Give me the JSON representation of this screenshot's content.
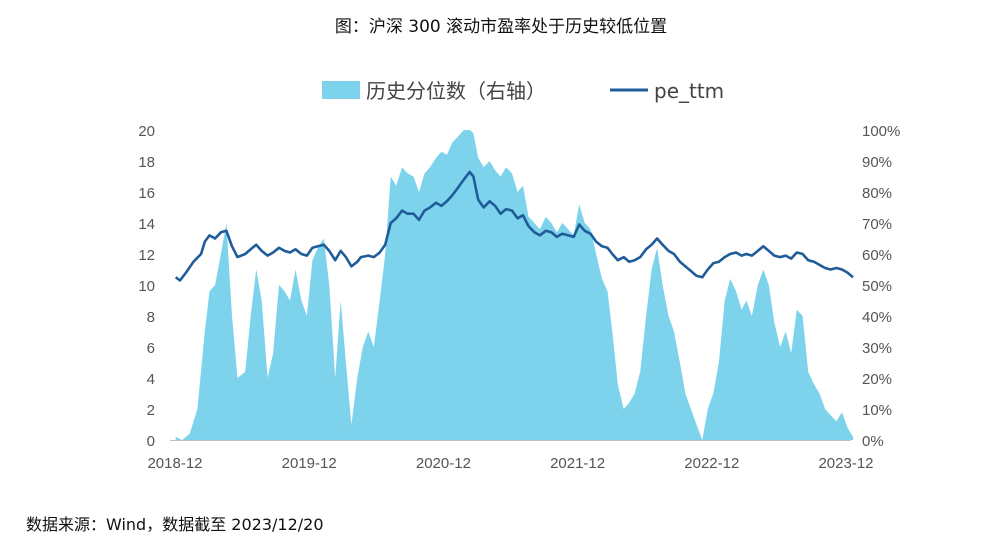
{
  "title": "图：沪深 300 滚动市盈率处于历史较低位置",
  "source": "数据来源：Wind，数据截至 2023/12/20",
  "colors": {
    "area": "#7DD3EC",
    "line": "#1F5C99",
    "axis": "#bfbfbf"
  },
  "chart_data": {
    "type": "line+area",
    "x_ticks": [
      "2018-12",
      "2019-12",
      "2020-12",
      "2021-12",
      "2022-12",
      "2023-12"
    ],
    "y_left": {
      "range": [
        0,
        20
      ],
      "ticks": [
        "0",
        "2",
        "4",
        "6",
        "8",
        "10",
        "12",
        "14",
        "16",
        "18",
        "20"
      ]
    },
    "y_right": {
      "range": [
        0,
        100
      ],
      "ticks": [
        "0%",
        "10%",
        "20%",
        "30%",
        "40%",
        "50%",
        "60%",
        "70%",
        "80%",
        "90%",
        "100%"
      ]
    },
    "legend": {
      "placement": "top-center",
      "area_label": "历史分位数（右轴）",
      "line_label": "pe_ttm"
    },
    "series": [
      {
        "name": "历史分位数（右轴）",
        "axis": "right",
        "kind": "area",
        "points": [
          [
            "2018-12-03",
            1
          ],
          [
            "2018-12-20",
            0
          ],
          [
            "2019-01-10",
            2
          ],
          [
            "2019-01-31",
            10
          ],
          [
            "2019-02-20",
            35
          ],
          [
            "2019-03-05",
            48
          ],
          [
            "2019-03-20",
            50
          ],
          [
            "2019-04-05",
            60
          ],
          [
            "2019-04-20",
            70
          ],
          [
            "2019-05-05",
            40
          ],
          [
            "2019-05-20",
            20
          ],
          [
            "2019-06-10",
            22
          ],
          [
            "2019-06-25",
            40
          ],
          [
            "2019-07-10",
            55
          ],
          [
            "2019-07-25",
            45
          ],
          [
            "2019-08-10",
            20
          ],
          [
            "2019-08-25",
            28
          ],
          [
            "2019-09-10",
            50
          ],
          [
            "2019-09-25",
            48
          ],
          [
            "2019-10-10",
            45
          ],
          [
            "2019-10-25",
            55
          ],
          [
            "2019-11-10",
            45
          ],
          [
            "2019-11-25",
            40
          ],
          [
            "2019-12-10",
            58
          ],
          [
            "2019-12-25",
            62
          ],
          [
            "2020-01-10",
            65
          ],
          [
            "2020-01-25",
            50
          ],
          [
            "2020-02-10",
            20
          ],
          [
            "2020-02-25",
            45
          ],
          [
            "2020-03-10",
            25
          ],
          [
            "2020-03-25",
            5
          ],
          [
            "2020-04-10",
            20
          ],
          [
            "2020-04-25",
            30
          ],
          [
            "2020-05-10",
            35
          ],
          [
            "2020-05-25",
            30
          ],
          [
            "2020-06-10",
            45
          ],
          [
            "2020-06-25",
            60
          ],
          [
            "2020-07-10",
            85
          ],
          [
            "2020-07-25",
            82
          ],
          [
            "2020-08-10",
            88
          ],
          [
            "2020-08-25",
            86
          ],
          [
            "2020-09-10",
            85
          ],
          [
            "2020-09-25",
            80
          ],
          [
            "2020-10-10",
            86
          ],
          [
            "2020-10-25",
            88
          ],
          [
            "2020-11-10",
            91
          ],
          [
            "2020-11-25",
            93
          ],
          [
            "2020-12-10",
            92
          ],
          [
            "2020-12-25",
            96
          ],
          [
            "2021-01-10",
            98
          ],
          [
            "2021-01-25",
            100
          ],
          [
            "2021-02-10",
            100
          ],
          [
            "2021-02-20",
            99
          ],
          [
            "2021-03-05",
            91
          ],
          [
            "2021-03-20",
            88
          ],
          [
            "2021-04-05",
            90
          ],
          [
            "2021-04-20",
            87
          ],
          [
            "2021-05-05",
            85
          ],
          [
            "2021-05-20",
            88
          ],
          [
            "2021-06-05",
            86
          ],
          [
            "2021-06-20",
            80
          ],
          [
            "2021-07-05",
            82
          ],
          [
            "2021-07-20",
            72
          ],
          [
            "2021-08-05",
            70
          ],
          [
            "2021-08-20",
            68
          ],
          [
            "2021-09-05",
            72
          ],
          [
            "2021-09-20",
            70
          ],
          [
            "2021-10-05",
            67
          ],
          [
            "2021-10-20",
            70
          ],
          [
            "2021-11-05",
            68
          ],
          [
            "2021-11-20",
            66
          ],
          [
            "2021-12-05",
            76
          ],
          [
            "2021-12-20",
            70
          ],
          [
            "2022-01-05",
            68
          ],
          [
            "2022-01-20",
            60
          ],
          [
            "2022-02-05",
            52
          ],
          [
            "2022-02-20",
            48
          ],
          [
            "2022-03-05",
            35
          ],
          [
            "2022-03-20",
            18
          ],
          [
            "2022-04-05",
            10
          ],
          [
            "2022-04-20",
            12
          ],
          [
            "2022-05-05",
            15
          ],
          [
            "2022-05-20",
            22
          ],
          [
            "2022-06-05",
            40
          ],
          [
            "2022-06-20",
            55
          ],
          [
            "2022-07-05",
            62
          ],
          [
            "2022-07-20",
            50
          ],
          [
            "2022-08-05",
            40
          ],
          [
            "2022-08-20",
            35
          ],
          [
            "2022-09-05",
            25
          ],
          [
            "2022-09-20",
            15
          ],
          [
            "2022-10-05",
            10
          ],
          [
            "2022-10-20",
            5
          ],
          [
            "2022-11-05",
            0
          ],
          [
            "2022-11-20",
            10
          ],
          [
            "2022-12-05",
            15
          ],
          [
            "2022-12-20",
            25
          ],
          [
            "2023-01-05",
            45
          ],
          [
            "2023-01-20",
            52
          ],
          [
            "2023-02-05",
            48
          ],
          [
            "2023-02-20",
            42
          ],
          [
            "2023-03-05",
            45
          ],
          [
            "2023-03-20",
            40
          ],
          [
            "2023-04-05",
            50
          ],
          [
            "2023-04-20",
            55
          ],
          [
            "2023-05-05",
            50
          ],
          [
            "2023-05-20",
            38
          ],
          [
            "2023-06-05",
            30
          ],
          [
            "2023-06-20",
            35
          ],
          [
            "2023-07-05",
            28
          ],
          [
            "2023-07-20",
            42
          ],
          [
            "2023-08-05",
            40
          ],
          [
            "2023-08-20",
            22
          ],
          [
            "2023-09-05",
            18
          ],
          [
            "2023-09-20",
            15
          ],
          [
            "2023-10-05",
            10
          ],
          [
            "2023-10-20",
            8
          ],
          [
            "2023-11-05",
            6
          ],
          [
            "2023-11-20",
            9
          ],
          [
            "2023-12-05",
            4
          ],
          [
            "2023-12-20",
            1
          ]
        ]
      },
      {
        "name": "pe_ttm",
        "axis": "left",
        "kind": "line",
        "points": [
          [
            "2018-12-03",
            10.5
          ],
          [
            "2018-12-15",
            10.3
          ],
          [
            "2018-12-31",
            10.8
          ],
          [
            "2019-01-20",
            11.5
          ],
          [
            "2019-02-10",
            12.0
          ],
          [
            "2019-02-20",
            12.8
          ],
          [
            "2019-03-05",
            13.2
          ],
          [
            "2019-03-20",
            13.0
          ],
          [
            "2019-04-05",
            13.4
          ],
          [
            "2019-04-20",
            13.5
          ],
          [
            "2019-05-05",
            12.5
          ],
          [
            "2019-05-20",
            11.8
          ],
          [
            "2019-06-10",
            12.0
          ],
          [
            "2019-06-25",
            12.3
          ],
          [
            "2019-07-10",
            12.6
          ],
          [
            "2019-07-25",
            12.2
          ],
          [
            "2019-08-10",
            11.9
          ],
          [
            "2019-08-25",
            12.1
          ],
          [
            "2019-09-10",
            12.4
          ],
          [
            "2019-09-25",
            12.2
          ],
          [
            "2019-10-10",
            12.1
          ],
          [
            "2019-10-25",
            12.3
          ],
          [
            "2019-11-10",
            12.0
          ],
          [
            "2019-11-25",
            11.9
          ],
          [
            "2019-12-10",
            12.4
          ],
          [
            "2019-12-25",
            12.5
          ],
          [
            "2020-01-10",
            12.6
          ],
          [
            "2020-01-25",
            12.2
          ],
          [
            "2020-02-10",
            11.6
          ],
          [
            "2020-02-25",
            12.2
          ],
          [
            "2020-03-10",
            11.8
          ],
          [
            "2020-03-25",
            11.2
          ],
          [
            "2020-04-10",
            11.5
          ],
          [
            "2020-04-20",
            11.8
          ],
          [
            "2020-05-10",
            11.9
          ],
          [
            "2020-05-25",
            11.8
          ],
          [
            "2020-06-10",
            12.1
          ],
          [
            "2020-06-25",
            12.6
          ],
          [
            "2020-07-10",
            14.0
          ],
          [
            "2020-07-25",
            14.3
          ],
          [
            "2020-08-10",
            14.8
          ],
          [
            "2020-08-25",
            14.6
          ],
          [
            "2020-09-10",
            14.6
          ],
          [
            "2020-09-25",
            14.2
          ],
          [
            "2020-10-10",
            14.8
          ],
          [
            "2020-10-25",
            15.0
          ],
          [
            "2020-11-10",
            15.3
          ],
          [
            "2020-11-25",
            15.1
          ],
          [
            "2020-12-10",
            15.4
          ],
          [
            "2020-12-25",
            15.8
          ],
          [
            "2021-01-10",
            16.3
          ],
          [
            "2021-01-25",
            16.8
          ],
          [
            "2021-02-10",
            17.3
          ],
          [
            "2021-02-20",
            17.0
          ],
          [
            "2021-03-05",
            15.5
          ],
          [
            "2021-03-20",
            15.0
          ],
          [
            "2021-04-05",
            15.4
          ],
          [
            "2021-04-20",
            15.1
          ],
          [
            "2021-05-05",
            14.6
          ],
          [
            "2021-05-20",
            14.9
          ],
          [
            "2021-06-05",
            14.8
          ],
          [
            "2021-06-20",
            14.3
          ],
          [
            "2021-07-05",
            14.5
          ],
          [
            "2021-07-20",
            13.8
          ],
          [
            "2021-08-05",
            13.4
          ],
          [
            "2021-08-20",
            13.2
          ],
          [
            "2021-09-05",
            13.5
          ],
          [
            "2021-09-20",
            13.4
          ],
          [
            "2021-10-05",
            13.1
          ],
          [
            "2021-10-20",
            13.3
          ],
          [
            "2021-11-05",
            13.2
          ],
          [
            "2021-11-20",
            13.1
          ],
          [
            "2021-12-05",
            13.9
          ],
          [
            "2021-12-20",
            13.5
          ],
          [
            "2022-01-05",
            13.3
          ],
          [
            "2022-01-20",
            12.8
          ],
          [
            "2022-02-05",
            12.5
          ],
          [
            "2022-02-20",
            12.4
          ],
          [
            "2022-03-05",
            12.0
          ],
          [
            "2022-03-20",
            11.6
          ],
          [
            "2022-04-05",
            11.8
          ],
          [
            "2022-04-20",
            11.5
          ],
          [
            "2022-05-05",
            11.6
          ],
          [
            "2022-05-20",
            11.8
          ],
          [
            "2022-06-05",
            12.3
          ],
          [
            "2022-06-20",
            12.6
          ],
          [
            "2022-07-05",
            13.0
          ],
          [
            "2022-07-20",
            12.6
          ],
          [
            "2022-08-05",
            12.2
          ],
          [
            "2022-08-20",
            12.0
          ],
          [
            "2022-09-05",
            11.5
          ],
          [
            "2022-09-20",
            11.2
          ],
          [
            "2022-10-05",
            10.9
          ],
          [
            "2022-10-20",
            10.6
          ],
          [
            "2022-11-05",
            10.5
          ],
          [
            "2022-11-20",
            11.0
          ],
          [
            "2022-12-05",
            11.4
          ],
          [
            "2022-12-20",
            11.5
          ],
          [
            "2023-01-05",
            11.8
          ],
          [
            "2023-01-20",
            12.0
          ],
          [
            "2023-02-05",
            12.1
          ],
          [
            "2023-02-20",
            11.9
          ],
          [
            "2023-03-05",
            12.0
          ],
          [
            "2023-03-20",
            11.9
          ],
          [
            "2023-04-05",
            12.2
          ],
          [
            "2023-04-20",
            12.5
          ],
          [
            "2023-05-05",
            12.2
          ],
          [
            "2023-05-20",
            11.9
          ],
          [
            "2023-06-05",
            11.8
          ],
          [
            "2023-06-20",
            11.9
          ],
          [
            "2023-07-05",
            11.7
          ],
          [
            "2023-07-20",
            12.1
          ],
          [
            "2023-08-05",
            12.0
          ],
          [
            "2023-08-20",
            11.6
          ],
          [
            "2023-09-05",
            11.5
          ],
          [
            "2023-09-20",
            11.3
          ],
          [
            "2023-10-05",
            11.1
          ],
          [
            "2023-10-20",
            11.0
          ],
          [
            "2023-11-05",
            11.1
          ],
          [
            "2023-11-20",
            11.0
          ],
          [
            "2023-12-05",
            10.8
          ],
          [
            "2023-12-20",
            10.5
          ]
        ]
      }
    ]
  }
}
